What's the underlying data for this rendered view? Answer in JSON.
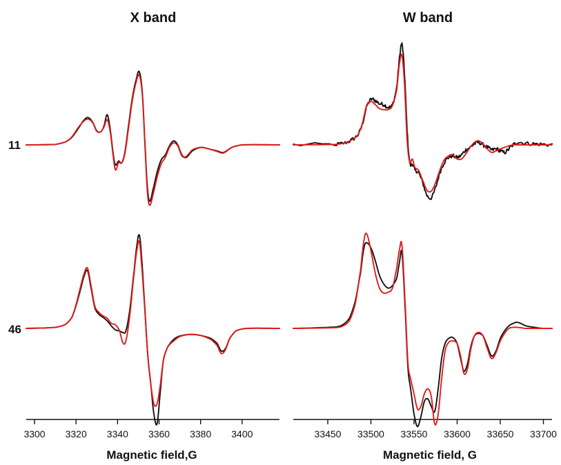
{
  "chart_data": [
    {
      "type": "line",
      "panel": "left",
      "title": "X band",
      "xlabel": "Magnetic field,G",
      "xlim": [
        3296,
        3418
      ],
      "xticks": [
        3300,
        3320,
        3340,
        3360,
        3380,
        3400
      ],
      "xtick_labels": [
        "3300",
        "3320",
        "3340",
        "3360",
        "3380",
        "3400"
      ],
      "grid": false,
      "rows": [
        {
          "label": "11",
          "series": [
            {
              "color": "#111111",
              "x": [
                3296,
                3310,
                3315,
                3318,
                3321,
                3324,
                3326,
                3328,
                3330,
                3332,
                3333.5,
                3335,
                3336.5,
                3338,
                3339,
                3340.5,
                3342,
                3343.5,
                3345,
                3347,
                3349,
                3350.5,
                3352,
                3353.5,
                3354.5,
                3355.5,
                3357,
                3359,
                3361,
                3363,
                3365,
                3367,
                3369,
                3371,
                3373,
                3376,
                3380,
                3384,
                3388,
                3391,
                3395,
                3400,
                3418
              ],
              "y": [
                0,
                0.01,
                0.06,
                0.15,
                0.32,
                0.5,
                0.54,
                0.45,
                0.28,
                0.26,
                0.38,
                0.6,
                0.3,
                -0.2,
                -0.4,
                -0.32,
                -0.36,
                -0.15,
                0.3,
                0.9,
                1.3,
                1.45,
                1.0,
                -0.2,
                -0.9,
                -1.12,
                -0.9,
                -0.55,
                -0.3,
                -0.2,
                -0.02,
                0.08,
                0.0,
                -0.2,
                -0.25,
                -0.12,
                -0.05,
                -0.08,
                -0.12,
                -0.15,
                -0.05,
                0,
                0
              ]
            },
            {
              "color": "#e01b1b",
              "x": [
                3296,
                3310,
                3315,
                3318,
                3321,
                3324,
                3326,
                3328,
                3330,
                3332,
                3333.5,
                3335,
                3336.5,
                3338,
                3339,
                3340.5,
                3342,
                3343.5,
                3345,
                3347,
                3349,
                3350.5,
                3352,
                3353.5,
                3354.5,
                3355.5,
                3357,
                3359,
                3361,
                3363,
                3365,
                3367,
                3369,
                3371,
                3373,
                3376,
                3380,
                3384,
                3388,
                3391,
                3395,
                3400,
                3418
              ],
              "y": [
                0,
                0.01,
                0.06,
                0.16,
                0.34,
                0.48,
                0.51,
                0.44,
                0.27,
                0.26,
                0.36,
                0.5,
                0.25,
                -0.25,
                -0.5,
                -0.35,
                -0.36,
                -0.18,
                0.25,
                0.85,
                1.25,
                1.38,
                0.95,
                -0.25,
                -1.0,
                -1.2,
                -1.0,
                -0.65,
                -0.38,
                -0.25,
                -0.05,
                0.04,
                -0.02,
                -0.22,
                -0.23,
                -0.1,
                -0.05,
                -0.08,
                -0.13,
                -0.16,
                -0.05,
                0,
                0
              ]
            }
          ]
        },
        {
          "label": "46",
          "series": [
            {
              "color": "#111111",
              "x": [
                3296,
                3310,
                3315,
                3318,
                3320,
                3322,
                3324,
                3325.5,
                3327,
                3329,
                3331,
                3333,
                3335,
                3337,
                3339,
                3341,
                3342.5,
                3344,
                3346,
                3348,
                3349.5,
                3350.5,
                3351.5,
                3353,
                3354.5,
                3356,
                3357.5,
                3359,
                3360.5,
                3362,
                3364,
                3367,
                3370,
                3375,
                3380,
                3385,
                3388,
                3390,
                3392,
                3394,
                3397,
                3402,
                3418
              ],
              "y": [
                0,
                0.02,
                0.08,
                0.22,
                0.45,
                0.75,
                1.05,
                1.15,
                0.85,
                0.42,
                0.28,
                0.22,
                0.15,
                0.05,
                -0.03,
                -0.05,
                -0.08,
                -0.05,
                0.4,
                1.15,
                1.7,
                1.85,
                1.45,
                0.5,
                -0.5,
                -1.1,
                -1.7,
                -1.9,
                -1.3,
                -0.65,
                -0.38,
                -0.22,
                -0.15,
                -0.12,
                -0.14,
                -0.2,
                -0.3,
                -0.45,
                -0.4,
                -0.2,
                -0.05,
                0,
                0
              ]
            },
            {
              "color": "#e01b1b",
              "x": [
                3296,
                3310,
                3315,
                3318,
                3320,
                3322,
                3324,
                3325.5,
                3327,
                3329,
                3331,
                3333,
                3335,
                3337,
                3339,
                3341,
                3342.5,
                3344,
                3346,
                3348,
                3349.5,
                3350.5,
                3351.5,
                3353,
                3354.5,
                3356,
                3357.5,
                3359,
                3360.5,
                3362,
                3364,
                3367,
                3370,
                3375,
                3380,
                3385,
                3388,
                3390,
                3392,
                3394,
                3397,
                3402,
                3418
              ],
              "y": [
                0,
                0.02,
                0.08,
                0.22,
                0.47,
                0.8,
                1.1,
                1.2,
                0.9,
                0.45,
                0.32,
                0.25,
                0.2,
                0.1,
                0.07,
                -0.05,
                -0.28,
                -0.25,
                0.3,
                1.1,
                1.6,
                1.72,
                1.3,
                0.45,
                -0.5,
                -1.1,
                -1.5,
                -1.5,
                -1.15,
                -0.65,
                -0.38,
                -0.25,
                -0.16,
                -0.12,
                -0.14,
                -0.22,
                -0.34,
                -0.5,
                -0.42,
                -0.2,
                -0.05,
                0,
                0
              ]
            }
          ]
        }
      ]
    },
    {
      "type": "line",
      "panel": "right",
      "title": "W band",
      "xlabel": "Magnetic field, G",
      "xlim": [
        33410,
        33710
      ],
      "xticks": [
        33450,
        33500,
        33550,
        33600,
        33650,
        33700
      ],
      "xtick_labels": [
        "33450",
        "33500",
        "33550",
        "33600",
        "33650",
        "33700"
      ],
      "grid": false,
      "rows": [
        {
          "label": "",
          "series": [
            {
              "color": "#111111",
              "x": [
                33410,
                33460,
                33470,
                33478,
                33485,
                33490,
                33495,
                33500,
                33505,
                33510,
                33515,
                33520,
                33525,
                33530,
                33533,
                33536,
                33539,
                33542,
                33545,
                33548,
                33551,
                33555,
                33560,
                33565,
                33570,
                33575,
                33580,
                33585,
                33590,
                33595,
                33600,
                33605,
                33610,
                33615,
                33620,
                33625,
                33630,
                33635,
                33640,
                33645,
                33650,
                33655,
                33660,
                33665,
                33670,
                33680,
                33690,
                33700,
                33710
              ],
              "y": [
                0,
                0.01,
                0.04,
                0.1,
                0.2,
                0.4,
                0.75,
                0.9,
                0.88,
                0.82,
                0.8,
                0.75,
                0.8,
                1.15,
                1.7,
                2.0,
                1.4,
                0.3,
                -0.35,
                -0.38,
                -0.5,
                -0.55,
                -0.75,
                -1.0,
                -1.05,
                -0.85,
                -0.55,
                -0.35,
                -0.25,
                -0.22,
                -0.25,
                -0.2,
                -0.1,
                -0.05,
                0.02,
                0.05,
                0.0,
                -0.05,
                -0.1,
                -0.08,
                -0.12,
                -0.15,
                -0.08,
                0.0,
                0.05,
                0.03,
                0.02,
                0.01,
                0.0
              ],
              "noise": 0.04
            },
            {
              "color": "#e01b1b",
              "x": [
                33410,
                33460,
                33470,
                33478,
                33485,
                33490,
                33495,
                33500,
                33505,
                33510,
                33515,
                33520,
                33525,
                33530,
                33533,
                33536,
                33539,
                33542,
                33545,
                33548,
                33551,
                33555,
                33560,
                33565,
                33570,
                33575,
                33580,
                33585,
                33590,
                33595,
                33600,
                33605,
                33610,
                33615,
                33620,
                33625,
                33630,
                33635,
                33640,
                33645,
                33650,
                33655,
                33660,
                33665,
                33670,
                33680,
                33690,
                33700,
                33710
              ],
              "y": [
                0,
                0.01,
                0.04,
                0.1,
                0.2,
                0.42,
                0.78,
                0.86,
                0.8,
                0.72,
                0.7,
                0.7,
                0.78,
                1.1,
                1.6,
                1.78,
                1.2,
                0.1,
                -0.35,
                -0.28,
                -0.45,
                -0.5,
                -0.7,
                -0.9,
                -0.92,
                -0.75,
                -0.5,
                -0.3,
                -0.22,
                -0.2,
                -0.28,
                -0.28,
                -0.18,
                -0.05,
                0.05,
                0.08,
                0.02,
                -0.08,
                -0.15,
                -0.12,
                -0.08,
                -0.05,
                -0.02,
                0.0,
                0.0,
                0.0,
                0.0,
                0.0,
                0.0
              ]
            }
          ]
        },
        {
          "label": "",
          "series": [
            {
              "color": "#111111",
              "x": [
                33410,
                33450,
                33465,
                33475,
                33482,
                33488,
                33492,
                33495,
                33500,
                33505,
                33510,
                33515,
                33520,
                33525,
                33530,
                33533,
                33536,
                33540,
                33543,
                33546,
                33550,
                33554,
                33558,
                33562,
                33566,
                33570,
                33574,
                33578,
                33582,
                33586,
                33590,
                33595,
                33600,
                33604,
                33608,
                33612,
                33616,
                33620,
                33625,
                33630,
                33635,
                33640,
                33645,
                33650,
                33655,
                33660,
                33665,
                33670,
                33680,
                33690,
                33700,
                33710
              ],
              "y": [
                0,
                0.02,
                0.05,
                0.2,
                0.55,
                1.1,
                1.6,
                1.7,
                1.6,
                1.35,
                1.05,
                0.88,
                0.8,
                0.85,
                1.0,
                1.3,
                1.5,
                0.3,
                -0.8,
                -1.2,
                -1.7,
                -1.95,
                -1.75,
                -1.45,
                -1.4,
                -1.55,
                -1.65,
                -1.2,
                -0.6,
                -0.3,
                -0.2,
                -0.18,
                -0.3,
                -0.6,
                -0.85,
                -0.7,
                -0.35,
                -0.15,
                -0.1,
                -0.15,
                -0.35,
                -0.55,
                -0.45,
                -0.2,
                -0.05,
                0.05,
                0.1,
                0.12,
                0.05,
                0.02,
                0.0,
                0.0
              ]
            },
            {
              "color": "#e01b1b",
              "x": [
                33410,
                33450,
                33465,
                33475,
                33482,
                33488,
                33492,
                33495,
                33500,
                33505,
                33510,
                33515,
                33520,
                33525,
                33530,
                33533,
                33536,
                33540,
                33543,
                33546,
                33550,
                33554,
                33558,
                33562,
                33566,
                33570,
                33574,
                33578,
                33582,
                33586,
                33590,
                33595,
                33600,
                33604,
                33608,
                33612,
                33616,
                33620,
                33625,
                33630,
                33635,
                33640,
                33645,
                33650,
                33655,
                33660,
                33665,
                33670,
                33680,
                33690,
                33700,
                33710
              ],
              "y": [
                0,
                0.01,
                0.03,
                0.15,
                0.5,
                1.15,
                1.75,
                1.88,
                1.55,
                1.1,
                0.8,
                0.7,
                0.72,
                0.8,
                1.2,
                1.55,
                1.65,
                0.4,
                -0.7,
                -1.0,
                -1.3,
                -1.6,
                -1.55,
                -1.3,
                -1.2,
                -1.35,
                -1.9,
                -1.7,
                -1.0,
                -0.45,
                -0.28,
                -0.25,
                -0.3,
                -0.55,
                -0.9,
                -0.8,
                -0.4,
                -0.15,
                -0.08,
                -0.15,
                -0.4,
                -0.6,
                -0.48,
                -0.25,
                -0.1,
                0.0,
                0.02,
                0.02,
                0.0,
                0.0,
                0.0,
                0.0
              ]
            }
          ]
        }
      ]
    }
  ]
}
